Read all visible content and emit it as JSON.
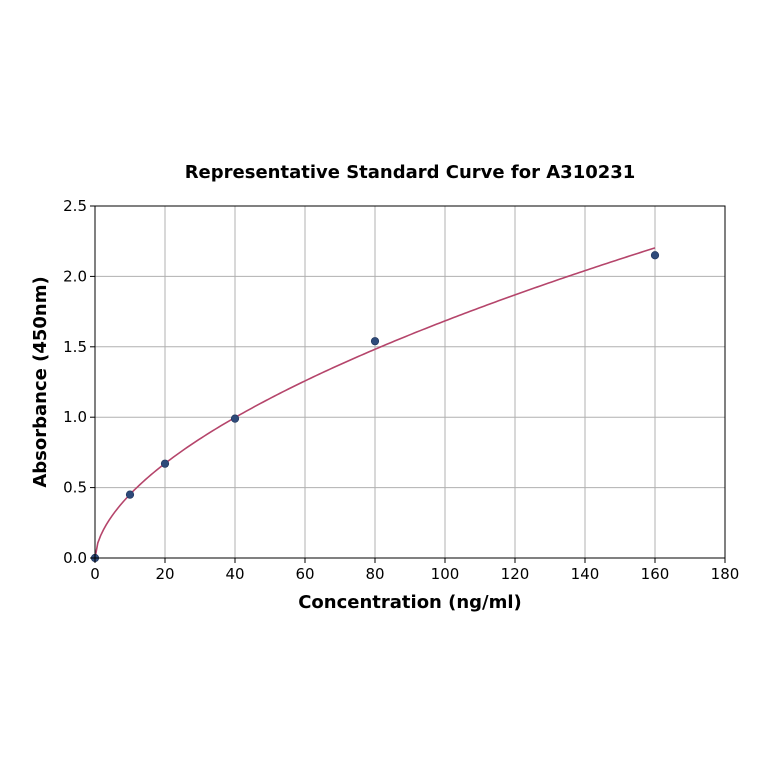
{
  "chart_data": {
    "type": "scatter",
    "title": "Representative Standard Curve for A310231",
    "xlabel": "Concentration (ng/ml)",
    "ylabel": "Absorbance (450nm)",
    "xlim": [
      0,
      180
    ],
    "ylim": [
      0,
      2.5
    ],
    "xticks": [
      "0",
      "20",
      "40",
      "60",
      "80",
      "100",
      "120",
      "140",
      "160",
      "180"
    ],
    "yticks": [
      "0.0",
      "0.5",
      "1.0",
      "1.5",
      "2.0",
      "2.5"
    ],
    "grid": true,
    "points": [
      {
        "x": 0,
        "y": 0.0
      },
      {
        "x": 10,
        "y": 0.45
      },
      {
        "x": 20,
        "y": 0.67
      },
      {
        "x": 40,
        "y": 0.99
      },
      {
        "x": 80,
        "y": 1.54
      },
      {
        "x": 160,
        "y": 2.15
      }
    ],
    "colors": {
      "curve": "#b5456b",
      "points": "#2e4a7a"
    }
  }
}
